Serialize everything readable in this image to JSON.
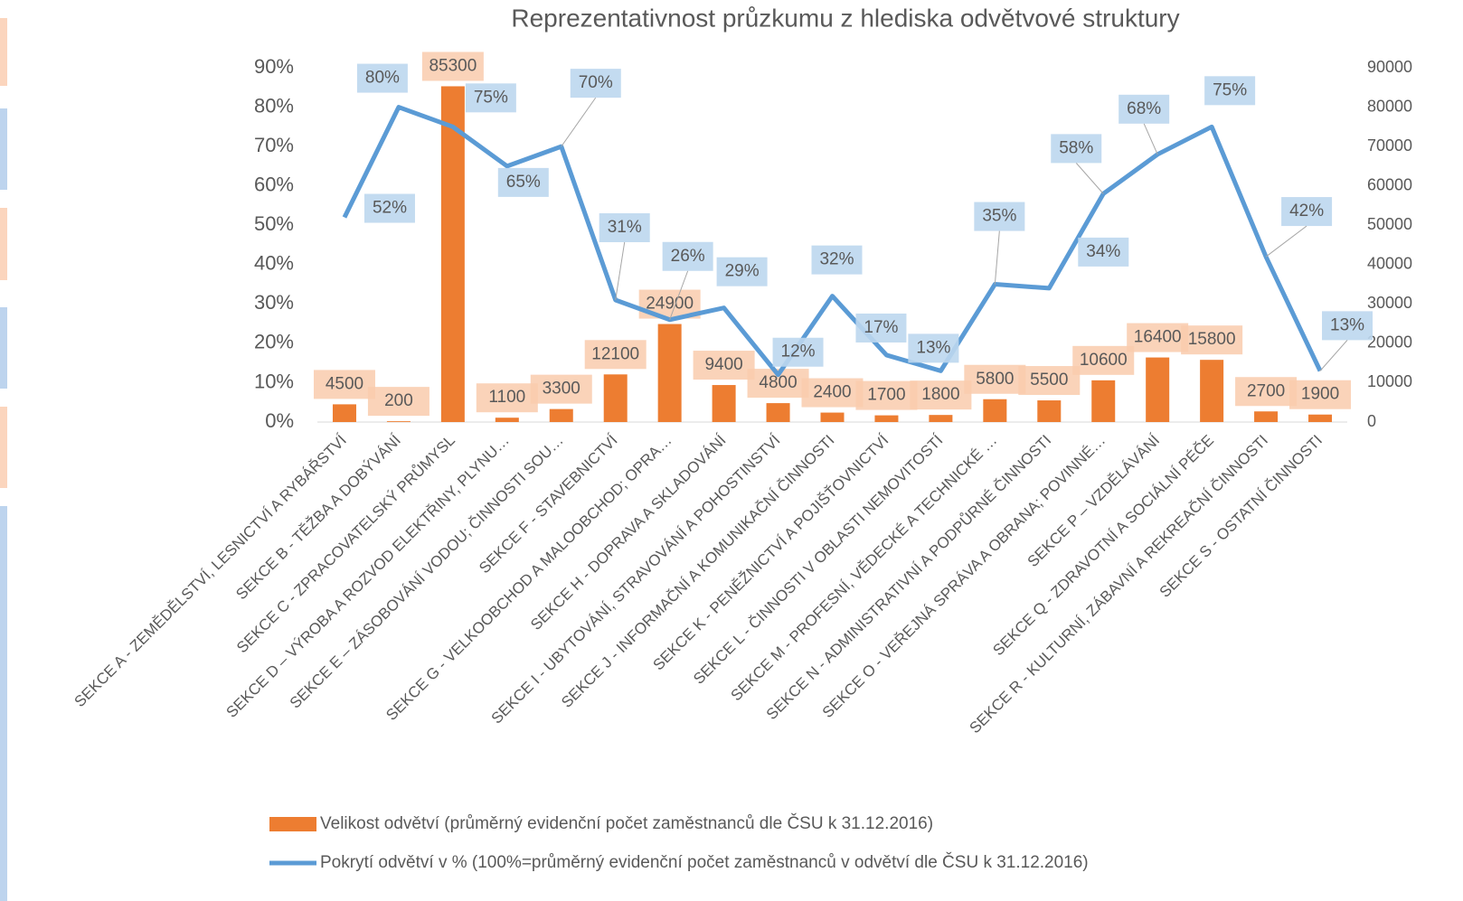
{
  "chart_data": {
    "type": "bar-line",
    "title": "Reprezentativnost průzkumu z hlediska odvětvové struktury",
    "categories": [
      "SEKCE A - ZEMĚDĚLSTVÍ, LESNICTVÍ A RYBÁŘSTVÍ",
      "SEKCE B - TĚŽBA A DOBÝVÁNÍ",
      "SEKCE C - ZPRACOVATELSKÝ PRŮMYSL",
      "SEKCE D – VÝROBA A ROZVOD ELEKTŘINY, PLYNU…",
      "SEKCE E – ZÁSOBOVÁNÍ VODOU; ČINNOSTI SOU…",
      "SEKCE F - STAVEBNICTVÍ",
      "SEKCE G - VELKOOBCHOD A MALOOBCHOD; OPRA…",
      "SEKCE H - DOPRAVA A SKLADOVÁNÍ",
      "SEKCE I - UBYTOVÁNÍ, STRAVOVÁNÍ A POHOSTINSTVÍ",
      "SEKCE J - INFORMAČNÍ A KOMUNIKAČNÍ ČINNOSTI",
      "SEKCE K - PENĚŽNICTVÍ A POJIŠŤOVNICTVÍ",
      "SEKCE L - ČINNOSTI V OBLASTI NEMOVITOSTÍ",
      "SEKCE M - PROFESNÍ, VĚDECKÉ A TECHNICKÉ …",
      "SEKCE N - ADMINISTRATIVNÍ A PODPŮRNÉ ČINNOSTI",
      "SEKCE O - VEŘEJNÁ SPRÁVA A OBRANA; POVINNÉ…",
      "SEKCE P – VZDĚLÁVÁNÍ",
      "SEKCE Q - ZDRAVOTNÍ A SOCIÁLNÍ PÉČE",
      "SEKCE R - KULTURNÍ, ZÁBAVNÍ A REKREAČNÍ ČINNOSTI",
      "SEKCE S - OSTATNÍ ČINNOSTI"
    ],
    "series": [
      {
        "name": "Velikost odvětví (průměrný evidenční počet zaměstnanců dle ČSU k 31.12.2016)",
        "type": "bar",
        "axis": "y2",
        "color": "#ed7d31",
        "values": [
          4500,
          200,
          85300,
          1100,
          3300,
          12100,
          24900,
          9400,
          4800,
          2400,
          1700,
          1800,
          5800,
          5500,
          10600,
          16400,
          15800,
          2700,
          1900
        ]
      },
      {
        "name": "Pokrytí odvětví v % (100%=průměrný evidenční počet zaměstnanců v odvětví dle ČSU k 31.12.2016)",
        "type": "line",
        "axis": "y",
        "color": "#5b9bd5",
        "values": [
          52,
          80,
          75,
          65,
          70,
          31,
          26,
          29,
          12,
          32,
          17,
          13,
          35,
          34,
          58,
          68,
          75,
          42,
          13
        ],
        "value_labels": [
          "52%",
          "80%",
          "75%",
          "65%",
          "70%",
          "31%",
          "26%",
          "29%",
          "12%",
          "32%",
          "17%",
          "13%",
          "35%",
          "34%",
          "58%",
          "68%",
          "75%",
          "42%",
          "13%"
        ]
      }
    ],
    "ylim": [
      0,
      90
    ],
    "yticks": [
      {
        "value": 0,
        "label": "0%"
      },
      {
        "value": 10,
        "label": "10%"
      },
      {
        "value": 20,
        "label": "20%"
      },
      {
        "value": 30,
        "label": "30%"
      },
      {
        "value": 40,
        "label": "40%"
      },
      {
        "value": 50,
        "label": "50%"
      },
      {
        "value": 60,
        "label": "60%"
      },
      {
        "value": 70,
        "label": "70%"
      },
      {
        "value": 80,
        "label": "80%"
      },
      {
        "value": 90,
        "label": "90%"
      }
    ],
    "y2lim": [
      0,
      90000
    ],
    "y2ticks": [
      0,
      10000,
      20000,
      30000,
      40000,
      50000,
      60000,
      70000,
      80000,
      90000
    ],
    "grid": false
  }
}
